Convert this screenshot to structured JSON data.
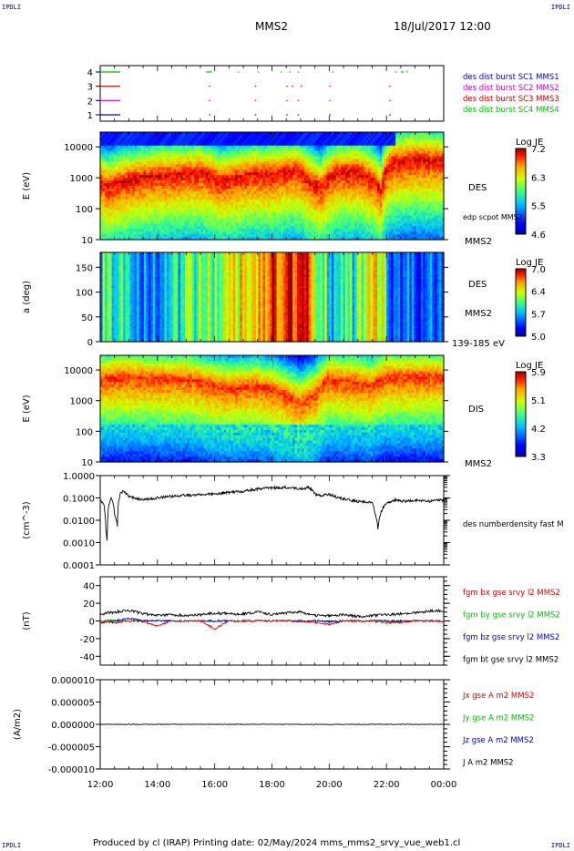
{
  "header": {
    "corner_tl": "IPDLI",
    "corner_tr": "IPDLI",
    "corner_bl": "IPDLI",
    "corner_br": "IPDLI",
    "spacecraft": "MMS2",
    "date": "18/Jul/2017 12:00"
  },
  "footer": {
    "text": "Produced by cl (IRAP)   Printing date: 02/May/2024   mms_mms2_srvy_vue_web1.cl"
  },
  "colors": {
    "mms1": "#0000cc",
    "mms2": "#cc00cc",
    "mms3": "#cc0000",
    "mms4": "#00bb00",
    "bx": "#dd0000",
    "by": "#00bb00",
    "bz": "#0000cc",
    "bt": "#000000"
  },
  "chart_data": [
    {
      "type": "timeline",
      "panel": "burst availability",
      "yticks": [
        "1",
        "2",
        "3",
        "4"
      ],
      "legend": [
        {
          "label": "des dist burst SC1 MMS1",
          "color": "#0000cc"
        },
        {
          "label": "des dist burst SC2 MMS2",
          "color": "#cc00cc"
        },
        {
          "label": "des dist burst SC3 MMS3",
          "color": "#cc0000"
        },
        {
          "label": "des dist burst SC4 MMS4",
          "color": "#00bb00"
        }
      ],
      "series": [
        {
          "sc": 4,
          "intervals": [
            [
              12.0,
              12.7
            ],
            [
              15.7,
              15.9
            ],
            [
              16.8,
              16.83
            ],
            [
              17.5,
              17.53
            ],
            [
              18.3,
              18.33
            ],
            [
              18.6,
              18.63
            ],
            [
              18.9,
              18.93
            ],
            [
              20.1,
              20.13
            ],
            [
              22.3,
              22.33
            ],
            [
              22.5,
              22.6
            ],
            [
              22.7,
              22.75
            ]
          ]
        },
        {
          "sc": 3,
          "intervals": [
            [
              12.0,
              12.7
            ],
            [
              15.8,
              15.83
            ],
            [
              17.4,
              17.43
            ],
            [
              18.5,
              18.53
            ],
            [
              18.7,
              18.73
            ],
            [
              19.0,
              19.03
            ],
            [
              20.0,
              20.03
            ],
            [
              22.1,
              22.13
            ]
          ]
        },
        {
          "sc": 2,
          "intervals": [
            [
              12.0,
              12.7
            ],
            [
              15.8,
              15.83
            ],
            [
              17.4,
              17.43
            ],
            [
              18.5,
              18.53
            ],
            [
              18.9,
              18.93
            ],
            [
              20.0,
              20.03
            ],
            [
              22.1,
              22.13
            ]
          ]
        },
        {
          "sc": 1,
          "intervals": [
            [
              12.0,
              12.7
            ],
            [
              15.8,
              15.83
            ],
            [
              17.4,
              17.43
            ],
            [
              18.5,
              18.53
            ],
            [
              18.9,
              18.93
            ],
            [
              20.0,
              20.03
            ],
            [
              22.1,
              22.13
            ]
          ]
        }
      ]
    },
    {
      "type": "heatmap",
      "panel": "DES energy spectrogram",
      "ylabel": "E (eV)",
      "yscale": "log",
      "ylim": [
        10,
        30000
      ],
      "yticks": [
        "10",
        "100",
        "1000",
        "10000"
      ],
      "right_labels": [
        "DES",
        "edp scpot MMS2",
        "MMS2"
      ],
      "colorbar": {
        "title": "Log JE",
        "ticks": [
          "7.2",
          "6.3",
          "5.5",
          "4.6"
        ],
        "range": [
          4.6,
          7.2
        ]
      },
      "peak_energy_eV": [
        [
          12.0,
          700
        ],
        [
          12.3,
          500
        ],
        [
          13.0,
          900
        ],
        [
          14.0,
          1200
        ],
        [
          15.5,
          1500
        ],
        [
          16.2,
          800
        ],
        [
          16.8,
          1000
        ],
        [
          17.3,
          1300
        ],
        [
          18.0,
          1300
        ],
        [
          18.8,
          1800
        ],
        [
          19.3,
          800
        ],
        [
          19.7,
          500
        ],
        [
          20.3,
          1500
        ],
        [
          21.0,
          1600
        ],
        [
          21.5,
          900
        ],
        [
          21.8,
          400
        ],
        [
          22.2,
          3000
        ],
        [
          23.0,
          4000
        ],
        [
          24.0,
          3500
        ]
      ]
    },
    {
      "type": "heatmap",
      "panel": "DES pitch angle",
      "ylabel": "a (deg)",
      "ylim": [
        0,
        180
      ],
      "yticks": [
        "0",
        "50",
        "100",
        "150"
      ],
      "right_labels": [
        "DES",
        "MMS2",
        "139-185 eV"
      ],
      "colorbar": {
        "title": "Log JE",
        "ticks": [
          "7.0",
          "6.4",
          "5.7",
          "5.0"
        ],
        "range": [
          5.0,
          7.0
        ]
      },
      "level_profile": [
        [
          12.0,
          0.4
        ],
        [
          12.6,
          0.5
        ],
        [
          13.2,
          0.2
        ],
        [
          14.0,
          0.25
        ],
        [
          15.0,
          0.5
        ],
        [
          16.0,
          0.55
        ],
        [
          17.0,
          0.7
        ],
        [
          18.0,
          0.85
        ],
        [
          18.9,
          0.95
        ],
        [
          19.5,
          0.7
        ],
        [
          20.2,
          0.35
        ],
        [
          21.0,
          0.5
        ],
        [
          21.7,
          0.75
        ],
        [
          22.3,
          0.2
        ],
        [
          24.0,
          0.25
        ]
      ]
    },
    {
      "type": "heatmap",
      "panel": "DIS energy spectrogram",
      "ylabel": "E (eV)",
      "yscale": "log",
      "ylim": [
        10,
        30000
      ],
      "yticks": [
        "10",
        "100",
        "1000",
        "10000"
      ],
      "right_labels": [
        "DIS",
        "MMS2"
      ],
      "colorbar": {
        "title": "Log JE",
        "ticks": [
          "5.9",
          "5.1",
          "4.2",
          "3.3"
        ],
        "range": [
          3.3,
          5.9
        ]
      },
      "peak_energy_eV": [
        [
          12.0,
          5000
        ],
        [
          13.0,
          6000
        ],
        [
          14.0,
          5000
        ],
        [
          15.0,
          5000
        ],
        [
          16.0,
          3000
        ],
        [
          16.5,
          2500
        ],
        [
          17.5,
          3000
        ],
        [
          18.5,
          1500
        ],
        [
          19.0,
          800
        ],
        [
          19.5,
          1500
        ],
        [
          20.0,
          5000
        ],
        [
          21.0,
          4000
        ],
        [
          21.5,
          3000
        ],
        [
          22.0,
          6000
        ],
        [
          24.0,
          6000
        ]
      ]
    },
    {
      "type": "line",
      "panel": "density",
      "ylabel": "(cm^-3)",
      "yscale": "log",
      "ylim": [
        0.0001,
        1.0
      ],
      "yticks": [
        "0.0001",
        "0.0010",
        "0.0100",
        "0.1000",
        "1.0000"
      ],
      "legend": [
        {
          "label": "des numberdensity fast M",
          "color": "#000000"
        }
      ],
      "x": [
        12.0,
        12.1,
        12.2,
        12.25,
        12.3,
        12.4,
        12.5,
        12.6,
        12.7,
        12.8,
        13.0,
        13.2,
        13.5,
        14.0,
        14.5,
        15.0,
        15.5,
        16.0,
        16.5,
        17.0,
        17.5,
        18.0,
        18.5,
        19.0,
        19.3,
        19.5,
        19.7,
        20.0,
        20.3,
        20.7,
        21.0,
        21.5,
        21.6,
        21.7,
        21.8,
        22.0,
        22.3,
        22.6,
        23.0,
        23.5,
        24.0
      ],
      "values": [
        0.08,
        0.06,
        0.003,
        0.0008,
        0.05,
        0.1,
        0.02,
        0.005,
        0.15,
        0.2,
        0.12,
        0.1,
        0.08,
        0.1,
        0.12,
        0.13,
        0.14,
        0.15,
        0.18,
        0.2,
        0.25,
        0.28,
        0.3,
        0.25,
        0.3,
        0.15,
        0.12,
        0.15,
        0.1,
        0.08,
        0.07,
        0.06,
        0.02,
        0.004,
        0.02,
        0.06,
        0.08,
        0.07,
        0.08,
        0.07,
        0.08
      ]
    },
    {
      "type": "line",
      "panel": "magnetic field",
      "ylabel": "(nT)",
      "ylim": [
        -50,
        50
      ],
      "yticks": [
        "-40",
        "-20",
        "0",
        "20",
        "40"
      ],
      "legend": [
        {
          "label": "fgm bx gse srvy l2 MMS2",
          "color": "#dd0000"
        },
        {
          "label": "fgm by gse srvy l2 MMS2",
          "color": "#00bb00"
        },
        {
          "label": "fgm bz gse srvy l2 MMS2",
          "color": "#0000cc"
        },
        {
          "label": "fgm bt gse srvy l2 MMS2",
          "color": "#000000"
        }
      ],
      "x": [
        12.0,
        12.5,
        13.0,
        13.5,
        14.0,
        14.5,
        15.0,
        15.5,
        16.0,
        16.5,
        17.0,
        17.5,
        18.0,
        18.5,
        19.0,
        19.5,
        20.0,
        20.5,
        21.0,
        21.5,
        22.0,
        22.5,
        23.0,
        23.5,
        24.0
      ],
      "series": [
        {
          "name": "bx",
          "values": [
            0,
            -2,
            0,
            -1,
            -6,
            0,
            0,
            0,
            -9,
            0,
            0,
            0,
            0,
            0,
            0,
            -2,
            -4,
            0,
            0,
            0,
            -1,
            -2,
            0,
            0,
            0
          ]
        },
        {
          "name": "by",
          "values": [
            0,
            1,
            0,
            0,
            0,
            0,
            0,
            0,
            0,
            0,
            0,
            0,
            0,
            0,
            0,
            0,
            0,
            0,
            0,
            0,
            -3,
            0,
            0,
            0,
            0
          ]
        },
        {
          "name": "bz",
          "values": [
            -2,
            0,
            3,
            0,
            0,
            0,
            0,
            0,
            0,
            0,
            0,
            0,
            0,
            0,
            -1,
            0,
            -1,
            0,
            0,
            0,
            0,
            0,
            0,
            0,
            0
          ]
        },
        {
          "name": "bt",
          "values": [
            8,
            10,
            12,
            8,
            6,
            7,
            6,
            7,
            9,
            8,
            8,
            10,
            7,
            9,
            10,
            6,
            6,
            7,
            5,
            6,
            7,
            8,
            9,
            11,
            12
          ]
        }
      ]
    },
    {
      "type": "line",
      "panel": "current density",
      "ylabel": "(A/m2)",
      "ylim": [
        -1e-05,
        1e-05
      ],
      "yticks": [
        "-0.000010",
        "-0.000005",
        "0.000000",
        "0.000005",
        "0.000010"
      ],
      "legend": [
        {
          "label": "Jx gse A m2 MMS2",
          "color": "#dd0000"
        },
        {
          "label": "Jy gse A m2 MMS2",
          "color": "#00bb00"
        },
        {
          "label": "Jz gse A m2 MMS2",
          "color": "#0000cc"
        },
        {
          "label": "J A m2 MMS2",
          "color": "#000000"
        }
      ],
      "x": [
        12.0,
        24.0
      ],
      "values": [
        0.0,
        0.0
      ]
    }
  ],
  "xaxis": {
    "ticks": [
      "12:00",
      "14:00",
      "16:00",
      "18:00",
      "20:00",
      "22:00",
      "00:00"
    ],
    "range_hours": [
      12,
      24
    ]
  }
}
